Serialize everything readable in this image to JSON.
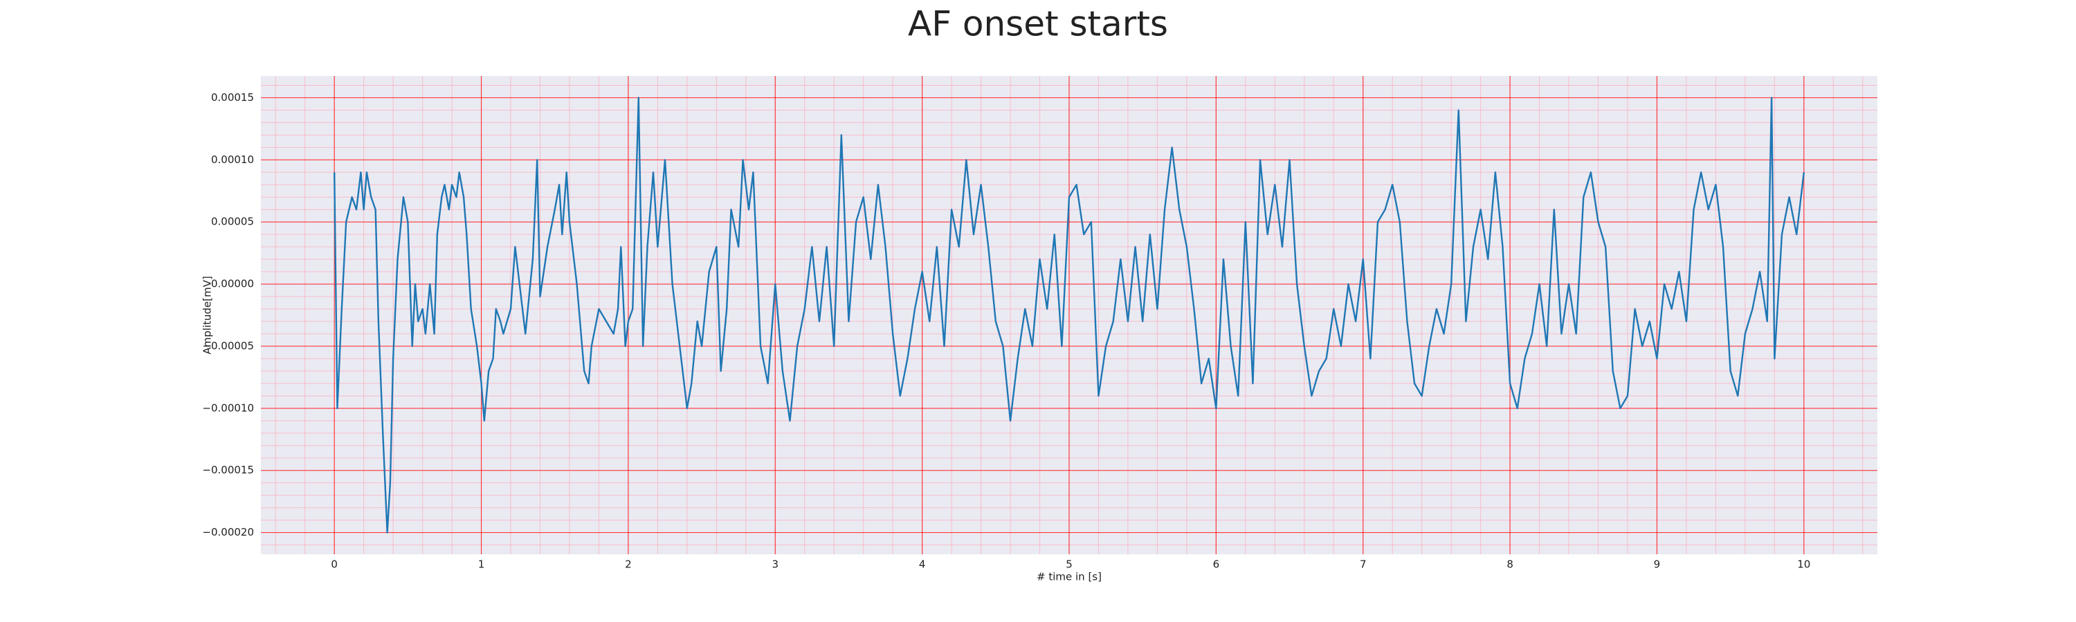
{
  "chart_data": {
    "type": "line",
    "title": "AF onset starts",
    "xlabel": "# time in [s]",
    "ylabel": "Amplitude[mV]",
    "color": "#1f77b4",
    "grid": true,
    "minor_grid": true,
    "grid_color": "#ff0000",
    "minor_grid_color": "#ff9fb0",
    "background": "#eaeaf2",
    "xlim": [
      -0.5,
      10.5
    ],
    "xticks": [
      0,
      1,
      2,
      3,
      4,
      5,
      6,
      7,
      8,
      9,
      10
    ],
    "ylim": [
      -0.0002175,
      0.0001675
    ],
    "yticks": [
      {
        "value": -0.0002,
        "label": "−0.00020"
      },
      {
        "value": -0.00015,
        "label": "−0.00015"
      },
      {
        "value": -0.0001,
        "label": "−0.00010"
      },
      {
        "value": -5e-05,
        "label": "−0.00005"
      },
      {
        "value": 0,
        "label": "0.00000"
      },
      5e-05,
      {
        "value": 0.0001,
        "label": "0.00010"
      },
      0.00015
    ],
    "x": [
      0,
      0.02,
      0.05,
      0.08,
      0.12,
      0.15,
      0.18,
      0.2,
      0.22,
      0.25,
      0.28,
      0.3,
      0.33,
      0.36,
      0.38,
      0.4,
      0.43,
      0.47,
      0.5,
      0.53,
      0.55,
      0.57,
      0.6,
      0.62,
      0.65,
      0.68,
      0.7,
      0.73,
      0.75,
      0.78,
      0.8,
      0.83,
      0.85,
      0.88,
      0.9,
      0.93,
      0.97,
      1.0,
      1.02,
      1.05,
      1.08,
      1.1,
      1.13,
      1.15,
      1.2,
      1.23,
      1.27,
      1.3,
      1.35,
      1.38,
      1.4,
      1.45,
      1.5,
      1.53,
      1.55,
      1.58,
      1.6,
      1.65,
      1.7,
      1.73,
      1.75,
      1.8,
      1.85,
      1.9,
      1.93,
      1.95,
      1.98,
      2.0,
      2.03,
      2.07,
      2.1,
      2.13,
      2.17,
      2.2,
      2.25,
      2.3,
      2.35,
      2.4,
      2.43,
      2.47,
      2.5,
      2.55,
      2.6,
      2.63,
      2.67,
      2.7,
      2.75,
      2.78,
      2.82,
      2.85,
      2.9,
      2.95,
      3.0,
      3.05,
      3.1,
      3.15,
      3.2,
      3.25,
      3.3,
      3.35,
      3.4,
      3.45,
      3.5,
      3.55,
      3.6,
      3.65,
      3.7,
      3.75,
      3.8,
      3.85,
      3.9,
      3.95,
      4.0,
      4.05,
      4.1,
      4.15,
      4.2,
      4.25,
      4.3,
      4.35,
      4.4,
      4.45,
      4.5,
      4.55,
      4.6,
      4.65,
      4.7,
      4.75,
      4.8,
      4.85,
      4.9,
      4.95,
      5.0,
      5.05,
      5.1,
      5.15,
      5.2,
      5.25,
      5.3,
      5.35,
      5.4,
      5.45,
      5.5,
      5.55,
      5.6,
      5.65,
      5.7,
      5.75,
      5.8,
      5.85,
      5.9,
      5.95,
      6.0,
      6.05,
      6.1,
      6.15,
      6.2,
      6.25,
      6.3,
      6.35,
      6.4,
      6.45,
      6.5,
      6.55,
      6.6,
      6.65,
      6.7,
      6.75,
      6.8,
      6.85,
      6.9,
      6.95,
      7.0,
      7.05,
      7.1,
      7.15,
      7.2,
      7.25,
      7.3,
      7.35,
      7.4,
      7.45,
      7.5,
      7.55,
      7.6,
      7.65,
      7.7,
      7.75,
      7.8,
      7.85,
      7.9,
      7.95,
      8.0,
      8.05,
      8.1,
      8.15,
      8.2,
      8.25,
      8.3,
      8.35,
      8.4,
      8.45,
      8.5,
      8.55,
      8.6,
      8.65,
      8.7,
      8.75,
      8.8,
      8.85,
      8.9,
      8.95,
      9.0,
      9.05,
      9.1,
      9.15,
      9.2,
      9.25,
      9.3,
      9.35,
      9.4,
      9.45,
      9.5,
      9.55,
      9.6,
      9.65,
      9.7,
      9.75,
      9.78,
      9.8,
      9.85,
      9.9,
      9.95,
      10.0
    ],
    "values": [
      9e-05,
      -0.0001,
      -2e-05,
      5e-05,
      7e-05,
      6e-05,
      9e-05,
      6e-05,
      9e-05,
      7e-05,
      6e-05,
      -3e-05,
      -0.00012,
      -0.0002,
      -0.00016,
      -6e-05,
      2e-05,
      7e-05,
      5e-05,
      -5e-05,
      0,
      -3e-05,
      -2e-05,
      -4e-05,
      0,
      -4e-05,
      4e-05,
      7e-05,
      8e-05,
      6e-05,
      8e-05,
      7e-05,
      9e-05,
      7e-05,
      4e-05,
      -2e-05,
      -5e-05,
      -8e-05,
      -0.00011,
      -7e-05,
      -6e-05,
      -2e-05,
      -3e-05,
      -4e-05,
      -2e-05,
      3e-05,
      -1e-05,
      -4e-05,
      2e-05,
      0.0001,
      -1e-05,
      3e-05,
      6e-05,
      8e-05,
      4e-05,
      9e-05,
      5e-05,
      0,
      -7e-05,
      -8e-05,
      -5e-05,
      -2e-05,
      -3e-05,
      -4e-05,
      -2e-05,
      3e-05,
      -5e-05,
      -3e-05,
      -2e-05,
      0.00015,
      -5e-05,
      3e-05,
      9e-05,
      3e-05,
      0.0001,
      0,
      -5e-05,
      -0.0001,
      -8e-05,
      -3e-05,
      -5e-05,
      1e-05,
      3e-05,
      -7e-05,
      -2e-05,
      6e-05,
      3e-05,
      0.0001,
      6e-05,
      9e-05,
      -5e-05,
      -8e-05,
      0,
      -7e-05,
      -0.00011,
      -5e-05,
      -2e-05,
      3e-05,
      -3e-05,
      3e-05,
      -5e-05,
      0.00012,
      -3e-05,
      5e-05,
      7e-05,
      2e-05,
      8e-05,
      3e-05,
      -4e-05,
      -9e-05,
      -6e-05,
      -2e-05,
      1e-05,
      -3e-05,
      3e-05,
      -5e-05,
      6e-05,
      3e-05,
      0.0001,
      4e-05,
      8e-05,
      3e-05,
      -3e-05,
      -5e-05,
      -0.00011,
      -6e-05,
      -2e-05,
      -5e-05,
      2e-05,
      -2e-05,
      4e-05,
      -5e-05,
      7e-05,
      8e-05,
      4e-05,
      5e-05,
      -9e-05,
      -5e-05,
      -3e-05,
      2e-05,
      -3e-05,
      3e-05,
      -3e-05,
      4e-05,
      -2e-05,
      6e-05,
      0.00011,
      6e-05,
      3e-05,
      -2e-05,
      -8e-05,
      -6e-05,
      -0.0001,
      2e-05,
      -5e-05,
      -9e-05,
      5e-05,
      -8e-05,
      0.0001,
      4e-05,
      8e-05,
      3e-05,
      0.0001,
      0,
      -5e-05,
      -9e-05,
      -7e-05,
      -6e-05,
      -2e-05,
      -5e-05,
      0,
      -3e-05,
      2e-05,
      -6e-05,
      5e-05,
      6e-05,
      8e-05,
      5e-05,
      -3e-05,
      -8e-05,
      -9e-05,
      -5e-05,
      -2e-05,
      -4e-05,
      0,
      0.00014,
      -3e-05,
      3e-05,
      6e-05,
      2e-05,
      9e-05,
      3e-05,
      -8e-05,
      -0.0001,
      -6e-05,
      -4e-05,
      0,
      -5e-05,
      6e-05,
      -4e-05,
      0,
      -4e-05,
      7e-05,
      9e-05,
      5e-05,
      3e-05,
      -7e-05,
      -0.0001,
      -9e-05,
      -2e-05,
      -5e-05,
      -3e-05,
      -6e-05,
      0,
      -2e-05,
      1e-05,
      -3e-05,
      6e-05,
      9e-05,
      6e-05,
      8e-05,
      3e-05,
      -7e-05,
      -9e-05,
      -4e-05,
      -2e-05,
      1e-05,
      -3e-05,
      0.00015,
      -6e-05,
      4e-05,
      7e-05,
      4e-05,
      9e-05
    ]
  }
}
